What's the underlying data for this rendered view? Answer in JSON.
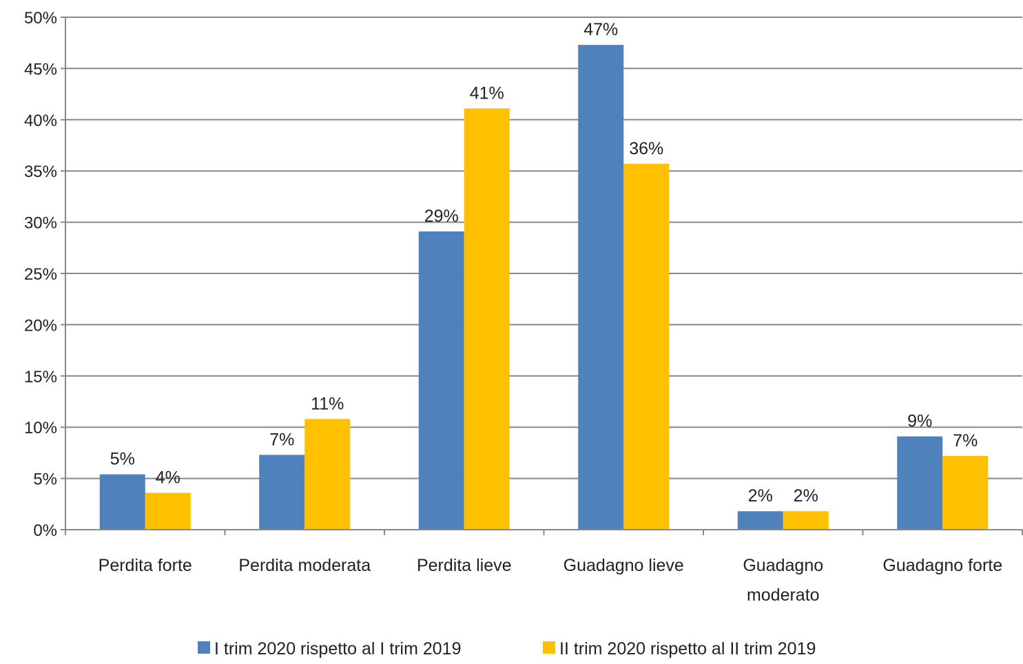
{
  "chart_data": {
    "type": "bar",
    "categories": [
      [
        "Perdita forte"
      ],
      [
        "Perdita moderata"
      ],
      [
        "Perdita lieve"
      ],
      [
        "Guadagno lieve"
      ],
      [
        "Guadagno",
        "moderato"
      ],
      [
        "Guadagno forte"
      ]
    ],
    "series": [
      {
        "name": "I trim 2020 rispetto al I trim 2019",
        "color": "#4f81bd",
        "values": [
          5.4,
          7.3,
          29.1,
          47.3,
          1.8,
          9.1
        ],
        "labels": [
          "5%",
          "7%",
          "29%",
          "47%",
          "2%",
          "9%"
        ]
      },
      {
        "name": "II trim 2020 rispetto al II trim 2019",
        "color": "#ffc000",
        "values": [
          3.6,
          10.8,
          41.1,
          35.7,
          1.8,
          7.2
        ],
        "labels": [
          "4%",
          "11%",
          "41%",
          "36%",
          "2%",
          "7%"
        ]
      }
    ],
    "ylim": [
      0,
      50
    ],
    "yticks": [
      0,
      5,
      10,
      15,
      20,
      25,
      30,
      35,
      40,
      45,
      50
    ],
    "ytick_labels": [
      "0%",
      "5%",
      "10%",
      "15%",
      "20%",
      "25%",
      "30%",
      "35%",
      "40%",
      "45%",
      "50%"
    ],
    "title": "",
    "xlabel": "",
    "ylabel": "",
    "grid": true,
    "legend_position": "bottom",
    "gridline_color": "#888888"
  }
}
